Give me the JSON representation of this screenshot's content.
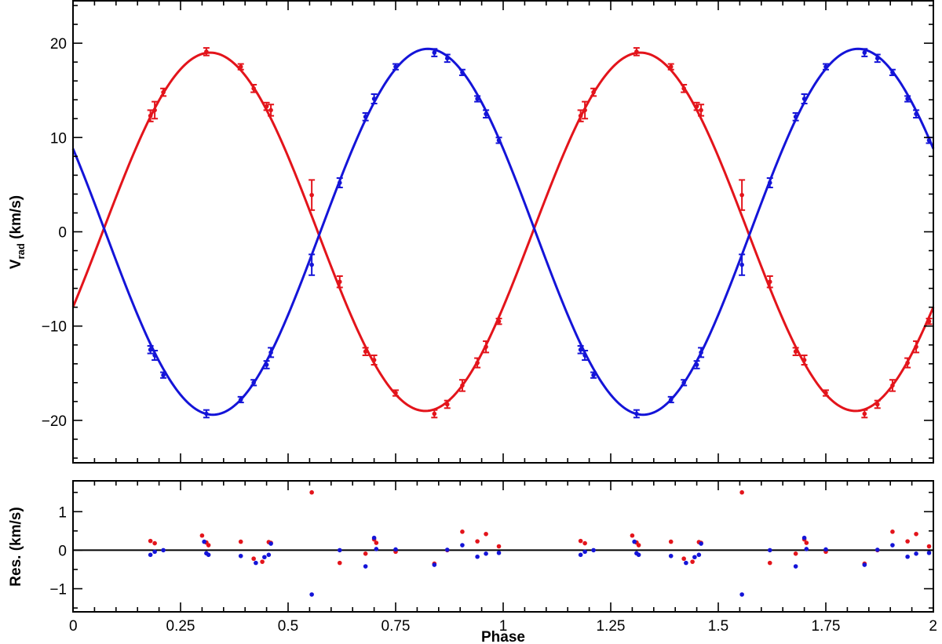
{
  "colors": {
    "primary": "#e3141b",
    "secondary": "#1414d8",
    "axis": "#000000"
  },
  "chart_data": [
    {
      "type": "scatter",
      "subtype": "radial-velocity curve with model fit",
      "xlabel": "",
      "ylabel_main": "V",
      "ylabel_sub": "rad",
      "ylabel_unit": " (km/s)",
      "xlim": [
        0,
        2
      ],
      "ylim": [
        -24.5,
        24.5
      ],
      "yticks": [
        -20,
        -10,
        0,
        10,
        20
      ],
      "ytick_labels": [
        "−20",
        "−10",
        "0",
        "10",
        "20"
      ],
      "grid": false,
      "model": {
        "amplitude_red_kms": 19.0,
        "amplitude_blue_kms": 19.4,
        "zero_crossing_phase_red": 0.069,
        "zero_crossing_phase_blue": 0.075,
        "period_phase": 1
      },
      "series": [
        {
          "color": "#e3141b",
          "x": [
            0.18,
            0.19,
            0.21,
            0.31,
            0.39,
            0.42,
            0.45,
            0.46,
            0.555,
            0.62,
            0.68,
            0.7,
            0.75,
            0.84,
            0.87,
            0.905,
            0.94,
            0.96,
            0.99,
            1.18,
            1.19,
            1.21,
            1.31,
            1.39,
            1.42,
            1.45,
            1.46,
            1.555,
            1.62,
            1.68,
            1.7,
            1.75,
            1.84,
            1.87,
            1.905,
            1.94,
            1.96,
            1.99
          ],
          "y": [
            12.3,
            12.9,
            14.8,
            19.1,
            17.5,
            15.2,
            13.3,
            12.9,
            3.9,
            -5.3,
            -12.7,
            -13.6,
            -17.1,
            -19.3,
            -18.3,
            -16.3,
            -13.9,
            -12.2,
            -9.5,
            12.3,
            12.9,
            14.8,
            19.1,
            17.5,
            15.2,
            13.3,
            12.9,
            3.9,
            -5.3,
            -12.7,
            -13.6,
            -17.1,
            -19.3,
            -18.3,
            -16.3,
            -13.9,
            -12.2,
            -9.5
          ],
          "err": [
            0.6,
            0.9,
            0.4,
            0.4,
            0.3,
            0.4,
            0.4,
            0.6,
            1.6,
            0.6,
            0.4,
            0.5,
            0.3,
            0.4,
            0.4,
            0.6,
            0.5,
            0.6,
            0.3,
            0.6,
            0.9,
            0.4,
            0.4,
            0.3,
            0.4,
            0.4,
            0.6,
            1.6,
            0.6,
            0.4,
            0.5,
            0.3,
            0.4,
            0.4,
            0.6,
            0.5,
            0.6,
            0.3
          ]
        },
        {
          "color": "#1414d8",
          "x": [
            0.18,
            0.19,
            0.21,
            0.31,
            0.39,
            0.42,
            0.45,
            0.46,
            0.555,
            0.62,
            0.68,
            0.7,
            0.75,
            0.84,
            0.87,
            0.905,
            0.94,
            0.96,
            0.99,
            1.18,
            1.19,
            1.21,
            1.31,
            1.39,
            1.42,
            1.45,
            1.46,
            1.555,
            1.62,
            1.68,
            1.7,
            1.75,
            1.84,
            1.87,
            1.905,
            1.94,
            1.96,
            1.99
          ],
          "y": [
            -12.5,
            -13.1,
            -15.2,
            -19.3,
            -17.8,
            -16.0,
            -14.1,
            -12.8,
            -3.5,
            5.2,
            12.2,
            14.1,
            17.5,
            19.0,
            18.4,
            16.9,
            14.1,
            12.5,
            9.7,
            -12.5,
            -13.1,
            -15.2,
            -19.3,
            -17.8,
            -16.0,
            -14.1,
            -12.8,
            -3.5,
            5.2,
            12.2,
            14.1,
            17.5,
            19.0,
            18.4,
            16.9,
            14.1,
            12.5,
            9.7
          ],
          "err": [
            0.4,
            0.5,
            0.3,
            0.4,
            0.3,
            0.3,
            0.4,
            0.5,
            1.1,
            0.5,
            0.4,
            0.5,
            0.3,
            0.4,
            0.4,
            0.3,
            0.3,
            0.4,
            0.3,
            0.4,
            0.5,
            0.3,
            0.4,
            0.3,
            0.3,
            0.4,
            0.5,
            1.1,
            0.5,
            0.4,
            0.5,
            0.3,
            0.4,
            0.4,
            0.3,
            0.3,
            0.4,
            0.3
          ]
        }
      ]
    },
    {
      "type": "scatter",
      "subtype": "residuals",
      "xlabel": "Phase",
      "ylabel": "Res. (km/s)",
      "xlim": [
        0,
        2
      ],
      "ylim": [
        -1.6,
        1.8
      ],
      "yticks": [
        -1,
        0,
        1
      ],
      "ytick_labels": [
        "−1",
        "0",
        "1"
      ],
      "xticks": [
        0,
        0.25,
        0.5,
        0.75,
        1,
        1.25,
        1.5,
        1.75,
        2
      ],
      "xtick_labels": [
        "0",
        "0.25",
        "0.5",
        "0.75",
        "1",
        "1.25",
        "1.5",
        "1.75",
        "2"
      ],
      "zero_line": true,
      "grid": false,
      "series": [
        {
          "color": "#e3141b",
          "x": [
            0.18,
            0.19,
            0.3,
            0.31,
            0.315,
            0.39,
            0.42,
            0.44,
            0.455,
            0.46,
            0.555,
            0.62,
            0.68,
            0.7,
            0.705,
            0.75,
            0.84,
            0.87,
            0.905,
            0.94,
            0.96,
            0.99,
            1.18,
            1.19,
            1.3,
            1.31,
            1.315,
            1.39,
            1.42,
            1.44,
            1.455,
            1.46,
            1.555,
            1.62,
            1.68,
            1.7,
            1.705,
            1.75,
            1.84,
            1.87,
            1.905,
            1.94,
            1.96,
            1.99
          ],
          "y": [
            0.24,
            0.18,
            0.38,
            0.2,
            0.13,
            0.22,
            -0.22,
            -0.3,
            0.21,
            0.19,
            1.5,
            -0.33,
            -0.09,
            0.28,
            0.19,
            -0.04,
            -0.35,
            0.0,
            0.48,
            0.23,
            0.42,
            0.1,
            0.24,
            0.18,
            0.38,
            0.2,
            0.13,
            0.22,
            -0.22,
            -0.3,
            0.21,
            0.19,
            1.5,
            -0.33,
            -0.09,
            0.28,
            0.19,
            -0.04,
            -0.35,
            0.0,
            0.48,
            0.23,
            0.42,
            0.1
          ]
        },
        {
          "color": "#1414d8",
          "x": [
            0.18,
            0.19,
            0.21,
            0.305,
            0.31,
            0.315,
            0.39,
            0.425,
            0.445,
            0.455,
            0.46,
            0.555,
            0.62,
            0.68,
            0.7,
            0.705,
            0.75,
            0.84,
            0.87,
            0.905,
            0.94,
            0.96,
            0.99,
            1.18,
            1.19,
            1.21,
            1.305,
            1.31,
            1.315,
            1.39,
            1.425,
            1.445,
            1.455,
            1.46,
            1.555,
            1.62,
            1.68,
            1.7,
            1.705,
            1.75,
            1.84,
            1.87,
            1.905,
            1.94,
            1.96,
            1.99
          ],
          "y": [
            -0.12,
            -0.04,
            0.0,
            0.22,
            -0.08,
            -0.12,
            -0.15,
            -0.33,
            -0.18,
            -0.12,
            0.17,
            -1.15,
            0.0,
            -0.42,
            0.32,
            0.03,
            0.02,
            -0.38,
            0.01,
            0.13,
            -0.17,
            -0.09,
            -0.07,
            -0.12,
            -0.04,
            0.0,
            0.22,
            -0.08,
            -0.12,
            -0.15,
            -0.33,
            -0.18,
            -0.12,
            0.17,
            -1.15,
            0.0,
            -0.42,
            0.32,
            0.03,
            0.02,
            -0.38,
            0.01,
            0.13,
            -0.17,
            -0.09,
            -0.07
          ]
        }
      ]
    }
  ]
}
